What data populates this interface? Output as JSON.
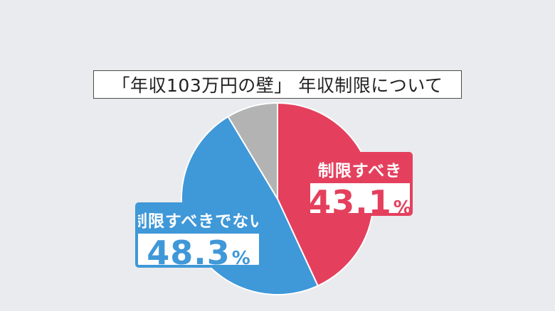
{
  "chart_data": {
    "type": "pie",
    "title": "「年収103万円の壁」 年収制限について",
    "start_angle_deg": 0,
    "direction": "clockwise",
    "slices": [
      {
        "label": "制限すべき",
        "value": 43.1,
        "value_text": "43.1",
        "unit": "%",
        "color": "#e4405d"
      },
      {
        "label": "制限すべきでない",
        "value": 48.3,
        "value_text": "48.3",
        "unit": "%",
        "color": "#3f98d8"
      },
      {
        "label": "",
        "value": 8.6,
        "color": "#b3b3b3"
      }
    ]
  },
  "colors": {
    "background": "#e9ebee",
    "slice_border": "#ffffff"
  }
}
